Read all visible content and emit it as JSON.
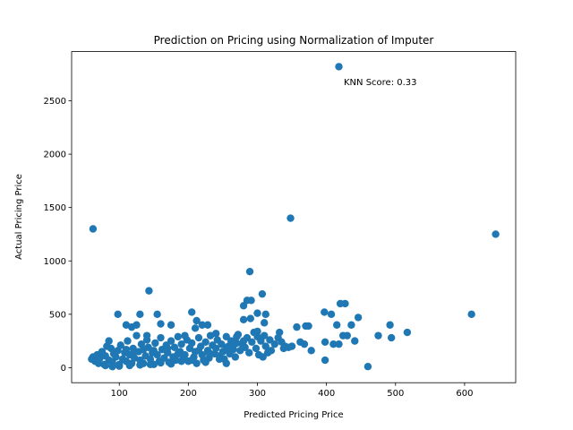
{
  "chart_data": {
    "type": "scatter",
    "title": "Prediction on Pricing using Normalization of Imputer",
    "x_label": "Predicted Pricing Price",
    "y_label": "Actual Pricing Price",
    "annotation": "KNN Score: 0.33",
    "color": "#1f77b4",
    "xlim": [
      31,
      674
    ],
    "ylim": [
      -141,
      2961
    ],
    "xticks": [
      100,
      200,
      300,
      400,
      500,
      600
    ],
    "yticks": [
      0,
      500,
      1000,
      1500,
      2000,
      2500
    ],
    "x": [
      418,
      348,
      62,
      645,
      610,
      289,
      143,
      307,
      285,
      291,
      280,
      460,
      517,
      492,
      494,
      475,
      446,
      427,
      420,
      397,
      407,
      398,
      398,
      410,
      418,
      430,
      424,
      436,
      441,
      415,
      374,
      370,
      357,
      378,
      362,
      368,
      350,
      338,
      332,
      312,
      300,
      205,
      212,
      220,
      228,
      175,
      130,
      98,
      155,
      110,
      118,
      125,
      255,
      210,
      160,
      60,
      62,
      65,
      68,
      70,
      72,
      75,
      78,
      80,
      82,
      85,
      88,
      90,
      92,
      95,
      98,
      100,
      102,
      105,
      108,
      110,
      112,
      115,
      118,
      120,
      122,
      125,
      128,
      130,
      132,
      135,
      138,
      140,
      142,
      145,
      148,
      150,
      152,
      155,
      158,
      160,
      162,
      165,
      168,
      170,
      172,
      175,
      178,
      180,
      182,
      185,
      188,
      190,
      192,
      195,
      198,
      200,
      202,
      205,
      208,
      210,
      212,
      215,
      218,
      220,
      222,
      225,
      228,
      230,
      232,
      235,
      238,
      240,
      242,
      245,
      248,
      250,
      252,
      255,
      258,
      260,
      262,
      265,
      268,
      270,
      272,
      275,
      278,
      280,
      282,
      285,
      288,
      290,
      292,
      295,
      298,
      300,
      302,
      305,
      308,
      310,
      312,
      315,
      318,
      320,
      325,
      330,
      335,
      340,
      345,
      80,
      90,
      100,
      115,
      130,
      145,
      160,
      175,
      190,
      205,
      225,
      245,
      85,
      140,
      195,
      240,
      270,
      150,
      170,
      120,
      110,
      135,
      185,
      215,
      230,
      255,
      265,
      280,
      300,
      310
    ],
    "y": [
      2820,
      1400,
      1300,
      1250,
      500,
      900,
      720,
      690,
      630,
      630,
      580,
      10,
      330,
      400,
      280,
      300,
      470,
      600,
      600,
      520,
      500,
      240,
      70,
      220,
      220,
      300,
      300,
      400,
      250,
      400,
      390,
      390,
      380,
      160,
      240,
      220,
      200,
      180,
      330,
      500,
      510,
      520,
      440,
      400,
      400,
      400,
      500,
      500,
      500,
      400,
      380,
      400,
      40,
      370,
      410,
      80,
      100,
      60,
      120,
      40,
      90,
      150,
      30,
      110,
      200,
      70,
      180,
      50,
      130,
      100,
      160,
      30,
      210,
      80,
      140,
      60,
      250,
      120,
      40,
      180,
      90,
      300,
      150,
      70,
      220,
      40,
      110,
      260,
      190,
      80,
      140,
      30,
      230,
      120,
      60,
      280,
      170,
      90,
      210,
      140,
      50,
      250,
      100,
      190,
      70,
      290,
      150,
      220,
      80,
      120,
      260,
      60,
      180,
      230,
      100,
      150,
      40,
      280,
      200,
      120,
      70,
      240,
      160,
      90,
      300,
      210,
      130,
      180,
      260,
      110,
      220,
      150,
      80,
      290,
      200,
      130,
      250,
      170,
      100,
      230,
      310,
      160,
      220,
      450,
      190,
      280,
      140,
      460,
      240,
      330,
      180,
      290,
      120,
      250,
      100,
      300,
      200,
      140,
      260,
      160,
      220,
      280,
      240,
      200,
      190,
      20,
      10,
      15,
      20,
      25,
      30,
      45,
      35,
      60,
      70,
      50,
      80,
      250,
      300,
      300,
      320,
      290,
      160,
      180,
      130,
      170,
      170,
      130,
      160,
      140,
      180,
      200,
      250,
      340,
      420
    ]
  }
}
